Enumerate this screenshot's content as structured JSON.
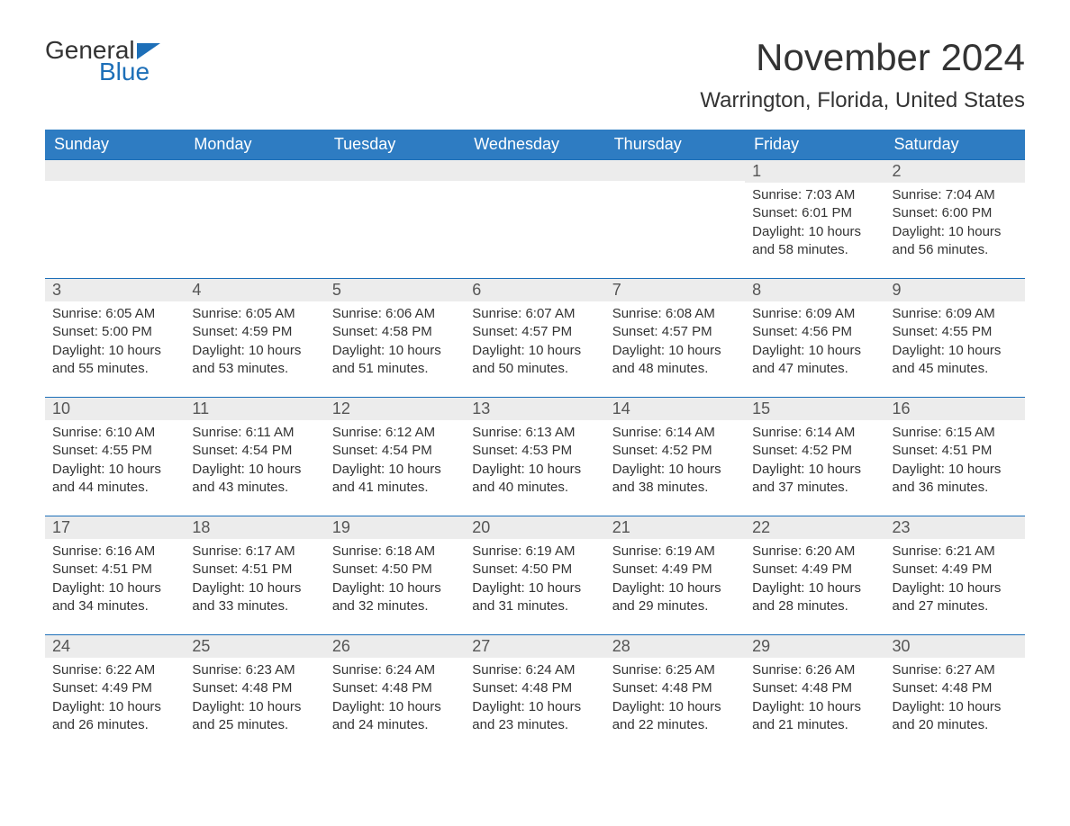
{
  "logo": {
    "general": "General",
    "blue": "Blue"
  },
  "title": "November 2024",
  "location": "Warrington, Florida, United States",
  "day_headers": [
    "Sunday",
    "Monday",
    "Tuesday",
    "Wednesday",
    "Thursday",
    "Friday",
    "Saturday"
  ],
  "colors": {
    "header_bg": "#2e7cc2",
    "header_text": "#ffffff",
    "accent": "#1d6fb8",
    "day_row_bg": "#ececec",
    "text": "#333333",
    "background": "#ffffff"
  },
  "weeks": [
    [
      null,
      null,
      null,
      null,
      null,
      {
        "num": "1",
        "sunrise": "Sunrise: 7:03 AM",
        "sunset": "Sunset: 6:01 PM",
        "daylight": "Daylight: 10 hours and 58 minutes."
      },
      {
        "num": "2",
        "sunrise": "Sunrise: 7:04 AM",
        "sunset": "Sunset: 6:00 PM",
        "daylight": "Daylight: 10 hours and 56 minutes."
      }
    ],
    [
      {
        "num": "3",
        "sunrise": "Sunrise: 6:05 AM",
        "sunset": "Sunset: 5:00 PM",
        "daylight": "Daylight: 10 hours and 55 minutes."
      },
      {
        "num": "4",
        "sunrise": "Sunrise: 6:05 AM",
        "sunset": "Sunset: 4:59 PM",
        "daylight": "Daylight: 10 hours and 53 minutes."
      },
      {
        "num": "5",
        "sunrise": "Sunrise: 6:06 AM",
        "sunset": "Sunset: 4:58 PM",
        "daylight": "Daylight: 10 hours and 51 minutes."
      },
      {
        "num": "6",
        "sunrise": "Sunrise: 6:07 AM",
        "sunset": "Sunset: 4:57 PM",
        "daylight": "Daylight: 10 hours and 50 minutes."
      },
      {
        "num": "7",
        "sunrise": "Sunrise: 6:08 AM",
        "sunset": "Sunset: 4:57 PM",
        "daylight": "Daylight: 10 hours and 48 minutes."
      },
      {
        "num": "8",
        "sunrise": "Sunrise: 6:09 AM",
        "sunset": "Sunset: 4:56 PM",
        "daylight": "Daylight: 10 hours and 47 minutes."
      },
      {
        "num": "9",
        "sunrise": "Sunrise: 6:09 AM",
        "sunset": "Sunset: 4:55 PM",
        "daylight": "Daylight: 10 hours and 45 minutes."
      }
    ],
    [
      {
        "num": "10",
        "sunrise": "Sunrise: 6:10 AM",
        "sunset": "Sunset: 4:55 PM",
        "daylight": "Daylight: 10 hours and 44 minutes."
      },
      {
        "num": "11",
        "sunrise": "Sunrise: 6:11 AM",
        "sunset": "Sunset: 4:54 PM",
        "daylight": "Daylight: 10 hours and 43 minutes."
      },
      {
        "num": "12",
        "sunrise": "Sunrise: 6:12 AM",
        "sunset": "Sunset: 4:54 PM",
        "daylight": "Daylight: 10 hours and 41 minutes."
      },
      {
        "num": "13",
        "sunrise": "Sunrise: 6:13 AM",
        "sunset": "Sunset: 4:53 PM",
        "daylight": "Daylight: 10 hours and 40 minutes."
      },
      {
        "num": "14",
        "sunrise": "Sunrise: 6:14 AM",
        "sunset": "Sunset: 4:52 PM",
        "daylight": "Daylight: 10 hours and 38 minutes."
      },
      {
        "num": "15",
        "sunrise": "Sunrise: 6:14 AM",
        "sunset": "Sunset: 4:52 PM",
        "daylight": "Daylight: 10 hours and 37 minutes."
      },
      {
        "num": "16",
        "sunrise": "Sunrise: 6:15 AM",
        "sunset": "Sunset: 4:51 PM",
        "daylight": "Daylight: 10 hours and 36 minutes."
      }
    ],
    [
      {
        "num": "17",
        "sunrise": "Sunrise: 6:16 AM",
        "sunset": "Sunset: 4:51 PM",
        "daylight": "Daylight: 10 hours and 34 minutes."
      },
      {
        "num": "18",
        "sunrise": "Sunrise: 6:17 AM",
        "sunset": "Sunset: 4:51 PM",
        "daylight": "Daylight: 10 hours and 33 minutes."
      },
      {
        "num": "19",
        "sunrise": "Sunrise: 6:18 AM",
        "sunset": "Sunset: 4:50 PM",
        "daylight": "Daylight: 10 hours and 32 minutes."
      },
      {
        "num": "20",
        "sunrise": "Sunrise: 6:19 AM",
        "sunset": "Sunset: 4:50 PM",
        "daylight": "Daylight: 10 hours and 31 minutes."
      },
      {
        "num": "21",
        "sunrise": "Sunrise: 6:19 AM",
        "sunset": "Sunset: 4:49 PM",
        "daylight": "Daylight: 10 hours and 29 minutes."
      },
      {
        "num": "22",
        "sunrise": "Sunrise: 6:20 AM",
        "sunset": "Sunset: 4:49 PM",
        "daylight": "Daylight: 10 hours and 28 minutes."
      },
      {
        "num": "23",
        "sunrise": "Sunrise: 6:21 AM",
        "sunset": "Sunset: 4:49 PM",
        "daylight": "Daylight: 10 hours and 27 minutes."
      }
    ],
    [
      {
        "num": "24",
        "sunrise": "Sunrise: 6:22 AM",
        "sunset": "Sunset: 4:49 PM",
        "daylight": "Daylight: 10 hours and 26 minutes."
      },
      {
        "num": "25",
        "sunrise": "Sunrise: 6:23 AM",
        "sunset": "Sunset: 4:48 PM",
        "daylight": "Daylight: 10 hours and 25 minutes."
      },
      {
        "num": "26",
        "sunrise": "Sunrise: 6:24 AM",
        "sunset": "Sunset: 4:48 PM",
        "daylight": "Daylight: 10 hours and 24 minutes."
      },
      {
        "num": "27",
        "sunrise": "Sunrise: 6:24 AM",
        "sunset": "Sunset: 4:48 PM",
        "daylight": "Daylight: 10 hours and 23 minutes."
      },
      {
        "num": "28",
        "sunrise": "Sunrise: 6:25 AM",
        "sunset": "Sunset: 4:48 PM",
        "daylight": "Daylight: 10 hours and 22 minutes."
      },
      {
        "num": "29",
        "sunrise": "Sunrise: 6:26 AM",
        "sunset": "Sunset: 4:48 PM",
        "daylight": "Daylight: 10 hours and 21 minutes."
      },
      {
        "num": "30",
        "sunrise": "Sunrise: 6:27 AM",
        "sunset": "Sunset: 4:48 PM",
        "daylight": "Daylight: 10 hours and 20 minutes."
      }
    ]
  ]
}
